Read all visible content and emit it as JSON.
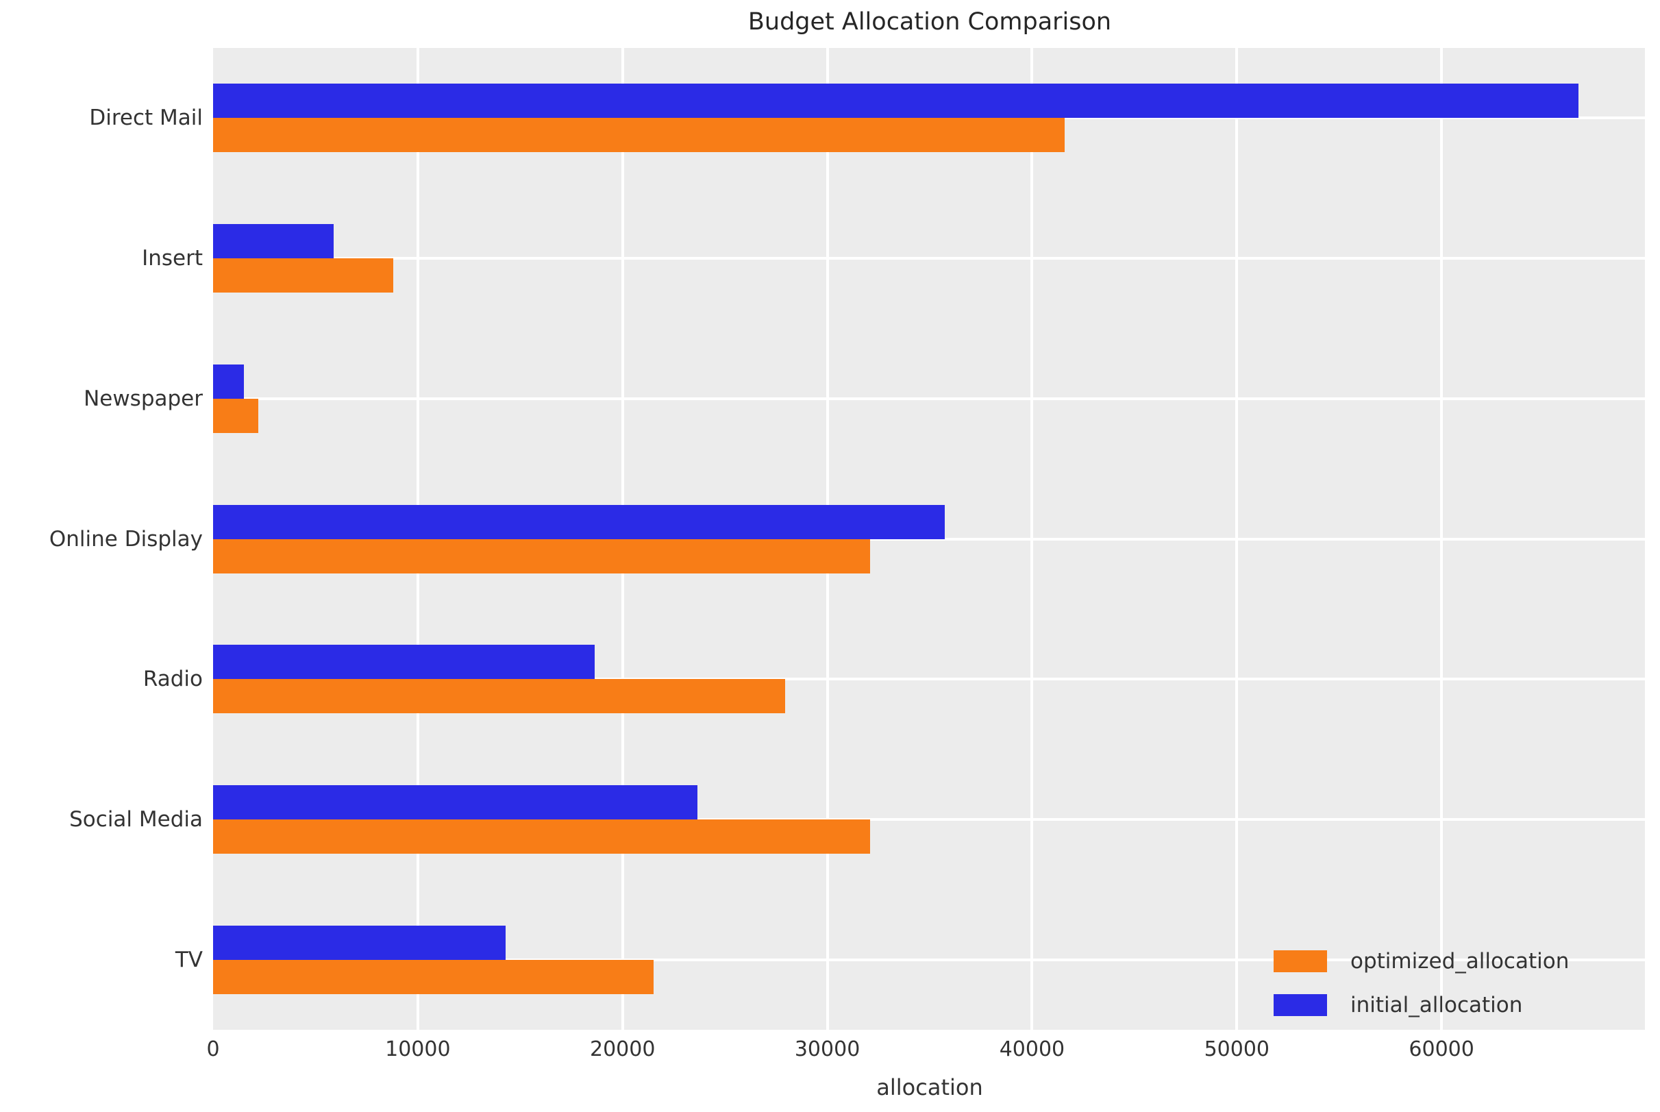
{
  "title": "Budget Allocation Comparison",
  "xlabel": "allocation",
  "colors": {
    "optimized_allocation": "#f87d17",
    "initial_allocation": "#2b2be6",
    "plot_background": "#ececec",
    "gridline": "#ffffff",
    "text": "#333333",
    "title_text": "#262626"
  },
  "legend": {
    "position": "lower right",
    "items": [
      {
        "label": "optimized_allocation",
        "color": "#f87d17"
      },
      {
        "label": "initial_allocation",
        "color": "#2b2be6"
      }
    ]
  },
  "x_tick_labels": [
    "0",
    "10000",
    "20000",
    "30000",
    "40000",
    "50000",
    "60000"
  ],
  "chart_data": {
    "type": "bar",
    "orientation": "horizontal",
    "title": "Budget Allocation Comparison",
    "xlabel": "allocation",
    "ylabel": "",
    "categories": [
      "Direct Mail",
      "Insert",
      "Newspaper",
      "Online Display",
      "Radio",
      "Social Media",
      "TV"
    ],
    "series": [
      {
        "name": "initial_allocation",
        "color": "#2b2be6",
        "values": [
          66700,
          5900,
          1500,
          35750,
          18650,
          23650,
          14300
        ]
      },
      {
        "name": "optimized_allocation",
        "color": "#f87d17",
        "values": [
          41600,
          8800,
          2200,
          32100,
          27950,
          32100,
          21500
        ]
      }
    ],
    "xlim": [
      0,
      70000
    ],
    "x_tick_values": [
      0,
      10000,
      20000,
      30000,
      40000,
      50000,
      60000
    ],
    "x_grid_values": [
      10000,
      20000,
      30000,
      40000,
      50000,
      60000,
      70000
    ],
    "grid": true,
    "plot_style": "light-gray background with white gridlines",
    "legend_position": "lower right",
    "bar_order_within_group": [
      "initial_allocation (top)",
      "optimized_allocation (bottom)"
    ]
  }
}
